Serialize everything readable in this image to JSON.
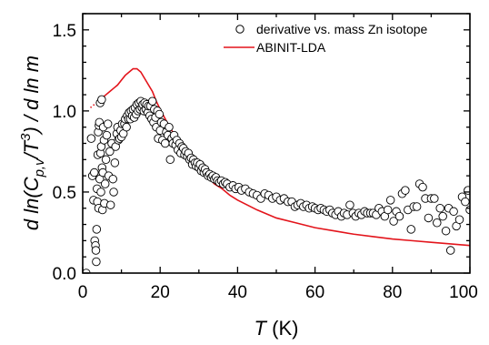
{
  "chart_data": {
    "type": "scatter",
    "xlabel": {
      "symbol": "T",
      "unit": " (K)"
    },
    "ylabel": {
      "prefix": "d ln(C",
      "sub": "p,v",
      "mid": "/T",
      "sup": "3",
      "suffix": ") / d ln m"
    },
    "xlim": [
      0,
      100
    ],
    "ylim": [
      0.0,
      1.6
    ],
    "xticks": [
      "0",
      "20",
      "40",
      "60",
      "80",
      "100"
    ],
    "yticks": [
      "0.0",
      "0.5",
      "1.0",
      "1.5"
    ],
    "grid": false,
    "legend_position": "top-right",
    "colors": {
      "model": "#e3141b",
      "points": "#000000",
      "axes": "#000000"
    },
    "series": [
      {
        "name": "derivative vs. mass Zn isotope",
        "kind": "scatter",
        "marker": "open-circle",
        "points": [
          [
            0.9,
            0.0
          ],
          [
            2.2,
            0.83
          ],
          [
            2.5,
            0.6
          ],
          [
            2.8,
            0.45
          ],
          [
            3.0,
            0.62
          ],
          [
            3.1,
            0.2
          ],
          [
            3.3,
            0.17
          ],
          [
            3.4,
            0.14
          ],
          [
            3.5,
            0.07
          ],
          [
            3.6,
            0.27
          ],
          [
            3.7,
            0.52
          ],
          [
            3.8,
            0.44
          ],
          [
            3.9,
            0.73
          ],
          [
            4.0,
            0.87
          ],
          [
            4.1,
            0.4
          ],
          [
            4.2,
            0.91
          ],
          [
            4.3,
            0.93
          ],
          [
            4.4,
            0.58
          ],
          [
            4.5,
            1.05
          ],
          [
            4.6,
            0.74
          ],
          [
            4.7,
            0.5
          ],
          [
            4.8,
            0.78
          ],
          [
            4.9,
            1.07
          ],
          [
            5.0,
            0.65
          ],
          [
            5.1,
            0.39
          ],
          [
            5.2,
            0.62
          ],
          [
            5.3,
            0.9
          ],
          [
            5.5,
            0.82
          ],
          [
            5.6,
            0.43
          ],
          [
            5.8,
            0.55
          ],
          [
            6.0,
            0.7
          ],
          [
            6.2,
            0.85
          ],
          [
            6.5,
            0.92
          ],
          [
            6.7,
            0.6
          ],
          [
            7.0,
            0.75
          ],
          [
            7.2,
            0.42
          ],
          [
            7.5,
            0.8
          ],
          [
            7.8,
            0.58
          ],
          [
            8.0,
            0.5
          ],
          [
            8.3,
            0.68
          ],
          [
            8.5,
            0.78
          ],
          [
            8.8,
            0.86
          ],
          [
            9.0,
            0.9
          ],
          [
            9.2,
            0.82
          ],
          [
            9.5,
            0.83
          ],
          [
            9.8,
            0.88
          ],
          [
            10.0,
            0.84
          ],
          [
            10.2,
            0.92
          ],
          [
            10.5,
            0.86
          ],
          [
            10.8,
            0.92
          ],
          [
            11.0,
            0.95
          ],
          [
            11.3,
            0.9
          ],
          [
            11.5,
            0.97
          ],
          [
            11.8,
            0.95
          ],
          [
            12.0,
            0.99
          ],
          [
            12.3,
            0.95
          ],
          [
            12.5,
            1.0
          ],
          [
            12.8,
            0.97
          ],
          [
            13.0,
            1.01
          ],
          [
            13.3,
            0.96
          ],
          [
            13.5,
            1.02
          ],
          [
            13.8,
            0.98
          ],
          [
            14.0,
            1.04
          ],
          [
            14.3,
            1.0
          ],
          [
            14.5,
            1.05
          ],
          [
            14.8,
            1.01
          ],
          [
            15.0,
            1.06
          ],
          [
            15.3,
            1.02
          ],
          [
            15.5,
            1.04
          ],
          [
            15.8,
            1.0
          ],
          [
            16.0,
            1.05
          ],
          [
            16.3,
            1.01
          ],
          [
            16.5,
            1.04
          ],
          [
            16.8,
            0.99
          ],
          [
            17.0,
            1.03
          ],
          [
            17.3,
            0.97
          ],
          [
            17.5,
            1.03
          ],
          [
            17.8,
            0.95
          ],
          [
            18.0,
            1.06
          ],
          [
            18.3,
            0.93
          ],
          [
            18.5,
            1.01
          ],
          [
            18.8,
            0.96
          ],
          [
            19.0,
            0.9
          ],
          [
            19.3,
            1.0
          ],
          [
            19.5,
            0.83
          ],
          [
            19.8,
            0.98
          ],
          [
            20.0,
            0.88
          ],
          [
            20.3,
            0.93
          ],
          [
            20.6,
            0.82
          ],
          [
            21.0,
            0.92
          ],
          [
            21.3,
            0.8
          ],
          [
            21.6,
            0.87
          ],
          [
            22.0,
            0.85
          ],
          [
            22.3,
            0.9
          ],
          [
            22.6,
            0.7
          ],
          [
            23.0,
            0.83
          ],
          [
            23.3,
            0.8
          ],
          [
            23.6,
            0.85
          ],
          [
            24.0,
            0.79
          ],
          [
            24.3,
            0.82
          ],
          [
            24.6,
            0.76
          ],
          [
            25.0,
            0.8
          ],
          [
            25.3,
            0.74
          ],
          [
            25.6,
            0.78
          ],
          [
            26.0,
            0.77
          ],
          [
            26.3,
            0.73
          ],
          [
            26.6,
            0.75
          ],
          [
            27.0,
            0.72
          ],
          [
            27.3,
            0.74
          ],
          [
            27.6,
            0.7
          ],
          [
            28.0,
            0.71
          ],
          [
            28.3,
            0.67
          ],
          [
            28.6,
            0.7
          ],
          [
            29.0,
            0.68
          ],
          [
            29.3,
            0.66
          ],
          [
            29.6,
            0.68
          ],
          [
            30.0,
            0.65
          ],
          [
            30.3,
            0.67
          ],
          [
            30.6,
            0.63
          ],
          [
            31.0,
            0.65
          ],
          [
            31.3,
            0.62
          ],
          [
            31.6,
            0.64
          ],
          [
            32.0,
            0.62
          ],
          [
            32.4,
            0.6
          ],
          [
            32.8,
            0.61
          ],
          [
            33.2,
            0.59
          ],
          [
            33.6,
            0.6
          ],
          [
            34.0,
            0.58
          ],
          [
            34.4,
            0.59
          ],
          [
            34.8,
            0.57
          ],
          [
            35.3,
            0.56
          ],
          [
            35.8,
            0.57
          ],
          [
            36.3,
            0.55
          ],
          [
            36.8,
            0.56
          ],
          [
            37.3,
            0.55
          ],
          [
            38.0,
            0.53
          ],
          [
            38.8,
            0.54
          ],
          [
            39.5,
            0.52
          ],
          [
            40.3,
            0.53
          ],
          [
            41.0,
            0.51
          ],
          [
            42.0,
            0.52
          ],
          [
            43.0,
            0.5
          ],
          [
            44.0,
            0.49
          ],
          [
            45.0,
            0.48
          ],
          [
            46.0,
            0.46
          ],
          [
            47.0,
            0.49
          ],
          [
            48.0,
            0.48
          ],
          [
            49.0,
            0.46
          ],
          [
            50.0,
            0.47
          ],
          [
            51.0,
            0.45
          ],
          [
            52.0,
            0.46
          ],
          [
            53.0,
            0.44
          ],
          [
            54.0,
            0.44
          ],
          [
            54.8,
            0.41
          ],
          [
            55.5,
            0.42
          ],
          [
            56.3,
            0.43
          ],
          [
            57.0,
            0.41
          ],
          [
            57.8,
            0.42
          ],
          [
            58.5,
            0.4
          ],
          [
            59.3,
            0.41
          ],
          [
            60.0,
            0.4
          ],
          [
            60.8,
            0.39
          ],
          [
            61.5,
            0.4
          ],
          [
            62.3,
            0.39
          ],
          [
            63.0,
            0.38
          ],
          [
            63.8,
            0.39
          ],
          [
            64.5,
            0.37
          ],
          [
            65.3,
            0.36
          ],
          [
            66.0,
            0.38
          ],
          [
            66.8,
            0.35
          ],
          [
            67.5,
            0.37
          ],
          [
            68.3,
            0.36
          ],
          [
            69.0,
            0.42
          ],
          [
            69.8,
            0.37
          ],
          [
            70.5,
            0.35
          ],
          [
            71.3,
            0.37
          ],
          [
            72.0,
            0.36
          ],
          [
            72.8,
            0.38
          ],
          [
            73.5,
            0.37
          ],
          [
            74.3,
            0.37
          ],
          [
            75.0,
            0.37
          ],
          [
            75.8,
            0.36
          ],
          [
            76.5,
            0.4
          ],
          [
            77.3,
            0.38
          ],
          [
            78.0,
            0.35
          ],
          [
            78.8,
            0.39
          ],
          [
            79.5,
            0.45
          ],
          [
            80.3,
            0.32
          ],
          [
            81.0,
            0.38
          ],
          [
            81.8,
            0.35
          ],
          [
            82.5,
            0.49
          ],
          [
            83.3,
            0.51
          ],
          [
            84.0,
            0.39
          ],
          [
            84.8,
            0.27
          ],
          [
            85.5,
            0.41
          ],
          [
            86.3,
            0.41
          ],
          [
            87.0,
            0.55
          ],
          [
            87.8,
            0.53
          ],
          [
            88.5,
            0.46
          ],
          [
            89.3,
            0.34
          ],
          [
            90.0,
            0.46
          ],
          [
            90.8,
            0.46
          ],
          [
            91.5,
            0.31
          ],
          [
            92.3,
            0.4
          ],
          [
            93.0,
            0.35
          ],
          [
            93.8,
            0.26
          ],
          [
            94.5,
            0.4
          ],
          [
            95.0,
            0.14
          ],
          [
            95.8,
            0.38
          ],
          [
            96.5,
            0.29
          ],
          [
            97.3,
            0.33
          ],
          [
            98.0,
            0.47
          ],
          [
            98.8,
            0.44
          ],
          [
            99.5,
            0.51
          ],
          [
            100.0,
            0.39
          ]
        ]
      },
      {
        "name": "ABINIT-LDA",
        "kind": "line",
        "color": "#e3141b",
        "dotted_until_x": 5.0,
        "points": [
          [
            2.0,
            1.02
          ],
          [
            3.0,
            1.04
          ],
          [
            4.0,
            1.06
          ],
          [
            5.0,
            1.08
          ],
          [
            6.0,
            1.1
          ],
          [
            7.0,
            1.12
          ],
          [
            8.0,
            1.14
          ],
          [
            9.0,
            1.16
          ],
          [
            10.0,
            1.19
          ],
          [
            11.0,
            1.22
          ],
          [
            12.0,
            1.24
          ],
          [
            13.0,
            1.26
          ],
          [
            14.0,
            1.26
          ],
          [
            15.0,
            1.24
          ],
          [
            16.0,
            1.2
          ],
          [
            17.0,
            1.16
          ],
          [
            18.0,
            1.12
          ],
          [
            19.0,
            1.06
          ],
          [
            20.0,
            1.01
          ],
          [
            22.0,
            0.92
          ],
          [
            24.0,
            0.84
          ],
          [
            26.0,
            0.76
          ],
          [
            28.0,
            0.7
          ],
          [
            30.0,
            0.65
          ],
          [
            32.0,
            0.6
          ],
          [
            34.0,
            0.55
          ],
          [
            36.0,
            0.52
          ],
          [
            38.0,
            0.48
          ],
          [
            40.0,
            0.45
          ],
          [
            45.0,
            0.39
          ],
          [
            50.0,
            0.34
          ],
          [
            55.0,
            0.31
          ],
          [
            60.0,
            0.28
          ],
          [
            65.0,
            0.26
          ],
          [
            70.0,
            0.24
          ],
          [
            75.0,
            0.225
          ],
          [
            80.0,
            0.21
          ],
          [
            85.0,
            0.2
          ],
          [
            90.0,
            0.19
          ],
          [
            95.0,
            0.18
          ],
          [
            100.0,
            0.17
          ]
        ]
      }
    ]
  }
}
